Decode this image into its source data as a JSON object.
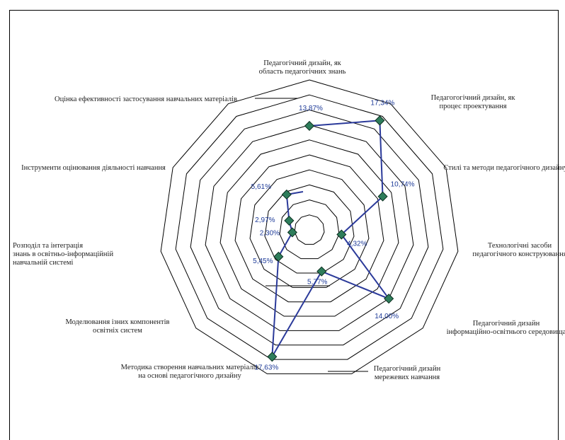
{
  "chart_data": {
    "type": "radar",
    "title": "",
    "categories": [
      "Педагогічний дизайн, як область педагогічних знань",
      "Педагогогічний дизайн, як процес проектування",
      "Стилі та методи педагогічного дизайну",
      "Технологічні засоби педагогічного конструювання",
      "Педагогічний дизайн інформаційно-освітнього середовища",
      "Педагогічний дизайн мережевих навчання",
      "Методика створення навчальних матеріалів на основі педагогічного дизайну",
      "Моделювання ізних компонентів освітніх систем",
      "Розподіл та інтеграція знань в освітньо-інформаційній навчальній системі",
      "Інструменти оцінювання діяльності навчання",
      "Оцінка ефективності застосування навчальних матеріалів"
    ],
    "series": [
      {
        "values": [
          17.34,
          10.74,
          4.32,
          14.0,
          5.77,
          17.63,
          5.45,
          2.3,
          2.97,
          5.61,
          13.87
        ],
        "labels": [
          "17,34%",
          "10,74%",
          "4,32%",
          "14,00%",
          "5,77%",
          "17,63%",
          "5,45%",
          "2,30%",
          "2,97%",
          "5,61%",
          "13,87%"
        ],
        "color": "#2b3a9a",
        "marker_color": "#2e7d5b"
      }
    ],
    "rlim": [
      0,
      20
    ],
    "grid": true,
    "legend": "none"
  },
  "colors": {
    "line": "#2b3a9a",
    "marker": "#2e7d5b",
    "grid": "#000000"
  }
}
